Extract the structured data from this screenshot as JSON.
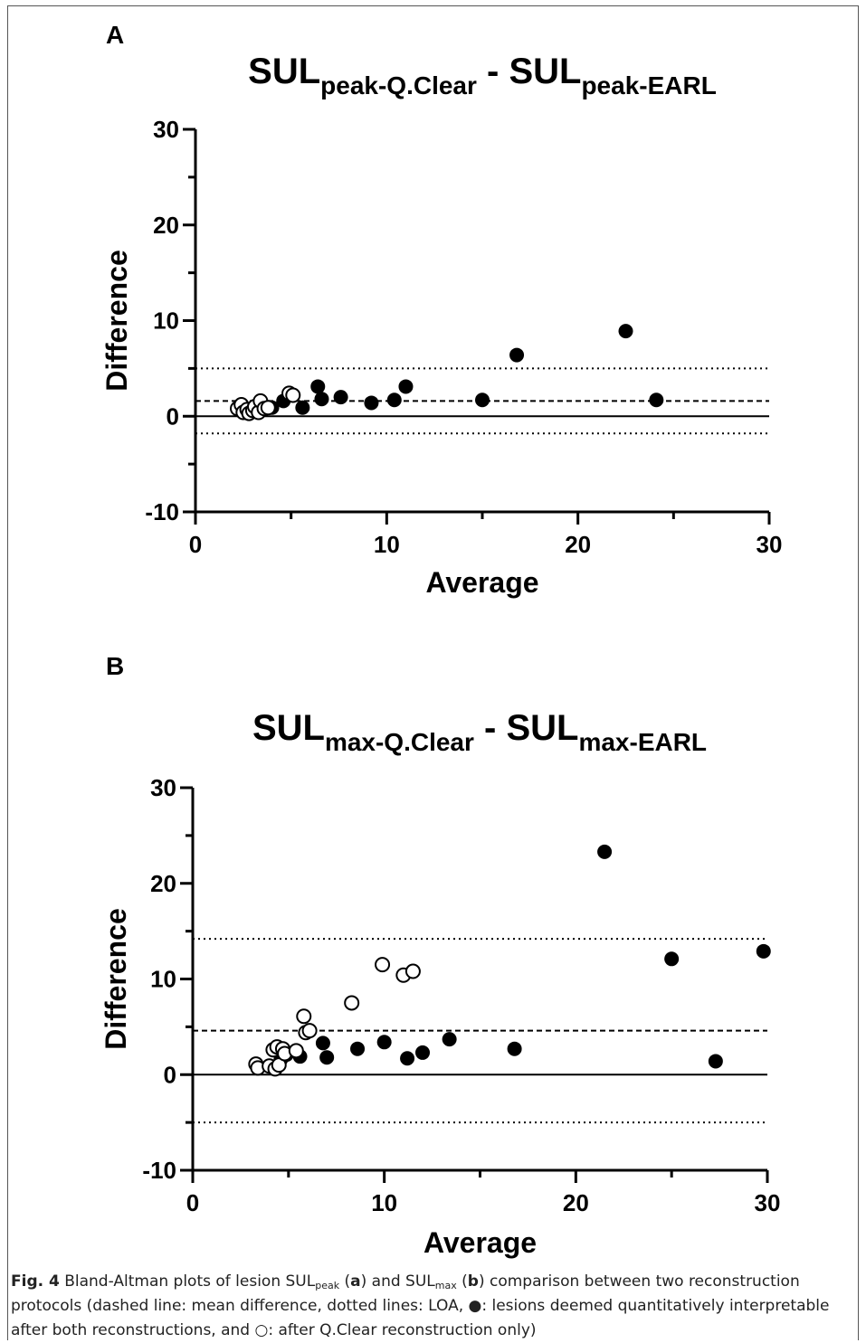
{
  "chart_data": [
    {
      "type": "scatter",
      "panel_label": "A",
      "title_main_1": "SUL",
      "title_sub_1": "peak-Q.Clear",
      "title_sep": " - ",
      "title_main_2": "SUL",
      "title_sub_2": "peak-EARL",
      "xlabel": "Average",
      "ylabel": "Difference",
      "xlim": [
        0,
        30
      ],
      "ylim": [
        -10,
        30
      ],
      "xticks": [
        "0",
        "10",
        "20",
        "30"
      ],
      "yticks": [
        "30",
        "20",
        "10",
        "0",
        "-10"
      ],
      "reference_lines": {
        "zero": 0,
        "mean_difference": 1.6,
        "loa_upper": 5.0,
        "loa_lower": -1.8
      },
      "series": [
        {
          "marker": "filled",
          "points": [
            [
              3.5,
              1.0
            ],
            [
              4.0,
              0.9
            ],
            [
              4.6,
              1.6
            ],
            [
              5.6,
              0.9
            ],
            [
              6.4,
              3.1
            ],
            [
              6.6,
              1.8
            ],
            [
              7.6,
              2.0
            ],
            [
              9.2,
              1.4
            ],
            [
              10.4,
              1.7
            ],
            [
              11.0,
              3.1
            ],
            [
              15.0,
              1.7
            ],
            [
              16.8,
              6.4
            ],
            [
              22.5,
              8.9
            ],
            [
              24.1,
              1.7
            ]
          ]
        },
        {
          "marker": "open",
          "points": [
            [
              2.2,
              0.8
            ],
            [
              2.4,
              1.2
            ],
            [
              2.5,
              0.4
            ],
            [
              2.7,
              0.7
            ],
            [
              2.8,
              0.3
            ],
            [
              3.0,
              0.6
            ],
            [
              3.1,
              1.0
            ],
            [
              3.3,
              0.4
            ],
            [
              3.4,
              1.6
            ],
            [
              3.6,
              0.8
            ],
            [
              3.8,
              0.9
            ],
            [
              4.9,
              2.4
            ],
            [
              5.1,
              2.2
            ]
          ]
        }
      ]
    },
    {
      "type": "scatter",
      "panel_label": "B",
      "title_main_1": "SUL",
      "title_sub_1": "max-Q.Clear",
      "title_sep": " - ",
      "title_main_2": "SUL",
      "title_sub_2": "max-EARL",
      "xlabel": "Average",
      "ylabel": "Difference",
      "xlim": [
        0,
        30
      ],
      "ylim": [
        -10,
        30
      ],
      "xticks": [
        "0",
        "10",
        "20",
        "30"
      ],
      "yticks": [
        "30",
        "20",
        "10",
        "0",
        "-10"
      ],
      "reference_lines": {
        "zero": 0,
        "mean_difference": 4.6,
        "loa_upper": 14.2,
        "loa_lower": -5.0
      },
      "series": [
        {
          "marker": "filled",
          "points": [
            [
              4.6,
              1.6
            ],
            [
              4.9,
              2.1
            ],
            [
              5.6,
              1.9
            ],
            [
              6.8,
              3.3
            ],
            [
              7.0,
              1.8
            ],
            [
              8.6,
              2.7
            ],
            [
              10.0,
              3.4
            ],
            [
              11.2,
              1.7
            ],
            [
              12.0,
              2.3
            ],
            [
              13.4,
              3.7
            ],
            [
              16.8,
              2.7
            ],
            [
              21.5,
              23.3
            ],
            [
              25.0,
              12.1
            ],
            [
              27.3,
              1.4
            ],
            [
              29.8,
              12.9
            ]
          ]
        },
        {
          "marker": "open",
          "points": [
            [
              3.3,
              1.1
            ],
            [
              3.4,
              0.7
            ],
            [
              4.0,
              0.9
            ],
            [
              4.2,
              2.6
            ],
            [
              4.3,
              0.6
            ],
            [
              4.4,
              2.9
            ],
            [
              4.5,
              1.0
            ],
            [
              4.7,
              2.7
            ],
            [
              4.8,
              2.2
            ],
            [
              5.4,
              2.5
            ],
            [
              5.8,
              6.1
            ],
            [
              5.9,
              4.4
            ],
            [
              6.1,
              4.6
            ],
            [
              8.3,
              7.5
            ],
            [
              9.9,
              11.5
            ],
            [
              11.0,
              10.4
            ],
            [
              11.5,
              10.8
            ]
          ]
        }
      ]
    }
  ],
  "caption": {
    "fig_label": "Fig. 4",
    "text_1": " Bland-Altman plots of lesion SUL",
    "sub_1": "peak",
    "text_2": " (",
    "bold_a": "a",
    "text_3": ") and SUL",
    "sub_2": "max",
    "text_4": " (",
    "bold_b": "b",
    "text_5": ") comparison between two reconstruction protocols (dashed line: mean difference, dotted lines: LOA, ●: lesions deemed quantitatively interpretable after both reconstructions, and ○: after Q.Clear reconstruction only)"
  }
}
